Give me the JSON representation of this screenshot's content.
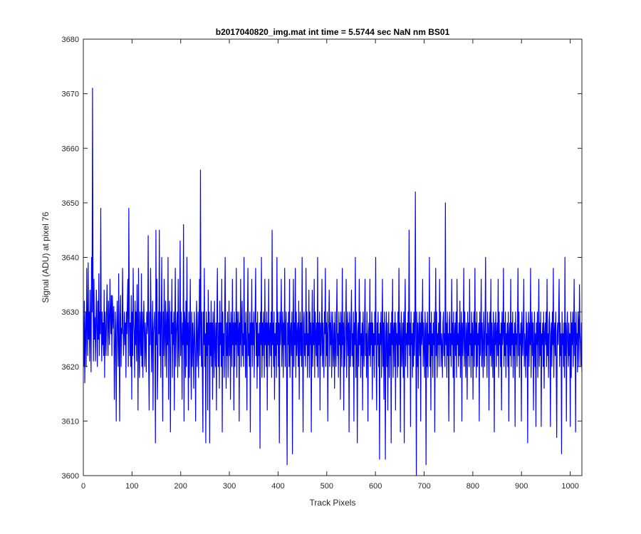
{
  "chart_data": {
    "type": "line",
    "title": "b2017040820_img.mat int time = 5.5744 sec  NaN nm BS01",
    "xlabel": "Track Pixels",
    "ylabel": "Signal (ADU) at pixel 76",
    "xlim": [
      0,
      1024
    ],
    "ylim": [
      3600,
      3680
    ],
    "xticks": [
      0,
      100,
      200,
      300,
      400,
      500,
      600,
      700,
      800,
      900,
      1000
    ],
    "yticks": [
      3600,
      3610,
      3620,
      3630,
      3640,
      3650,
      3660,
      3670,
      3680
    ],
    "grid": false,
    "legend": "none",
    "box": true,
    "line_color": "#0000ff",
    "series": [
      {
        "values": [
          3626,
          3620,
          3632,
          3617,
          3626,
          3630,
          3620,
          3638,
          3628,
          3622,
          3639,
          3625,
          3630,
          3621,
          3634,
          3627,
          3619,
          3640,
          3630,
          3671,
          3633,
          3621,
          3636,
          3625,
          3629,
          3621,
          3628,
          3634,
          3626,
          3620,
          3632,
          3625,
          3637,
          3622,
          3630,
          3626,
          3649,
          3628,
          3621,
          3630,
          3624,
          3628,
          3622,
          3634,
          3618,
          3630,
          3626,
          3622,
          3630,
          3635,
          3627,
          3622,
          3632,
          3628,
          3624,
          3636,
          3630,
          3626,
          3633,
          3622,
          3633,
          3629,
          3627,
          3631,
          3614,
          3622,
          3630,
          3625,
          3610,
          3627,
          3632,
          3626,
          3620,
          3637,
          3625,
          3610,
          3629,
          3633,
          3620,
          3627,
          3626,
          3638,
          3628,
          3622,
          3626,
          3630,
          3624,
          3628,
          3618,
          3630,
          3626,
          3632,
          3636,
          3620,
          3649,
          3630,
          3622,
          3628,
          3620,
          3633,
          3614,
          3630,
          3622,
          3638,
          3628,
          3626,
          3618,
          3632,
          3624,
          3630,
          3621,
          3635,
          3628,
          3612,
          3638,
          3624,
          3618,
          3630,
          3626,
          3622,
          3637,
          3620,
          3630,
          3618,
          3627,
          3632,
          3626,
          3620,
          3628,
          3624,
          3619,
          3630,
          3626,
          3628,
          3644,
          3620,
          3612,
          3630,
          3624,
          3638,
          3628,
          3619,
          3626,
          3632,
          3612,
          3626,
          3628,
          3630,
          3622,
          3606,
          3645,
          3624,
          3636,
          3614,
          3620,
          3630,
          3626,
          3645,
          3622,
          3630,
          3618,
          3628,
          3640,
          3624,
          3610,
          3630,
          3622,
          3636,
          3626,
          3620,
          3632,
          3628,
          3618,
          3630,
          3624,
          3640,
          3614,
          3628,
          3632,
          3622,
          3608,
          3630,
          3626,
          3636,
          3618,
          3628,
          3624,
          3630,
          3612,
          3628,
          3638,
          3620,
          3626,
          3628,
          3630,
          3618,
          3636,
          3624,
          3620,
          3628,
          3643,
          3622,
          3630,
          3626,
          3614,
          3628,
          3624,
          3646,
          3610,
          3630,
          3628,
          3618,
          3632,
          3620,
          3640,
          3624,
          3628,
          3612,
          3630,
          3618,
          3626,
          3636,
          3622,
          3614,
          3630,
          3620,
          3628,
          3624,
          3616,
          3630,
          3626,
          3622,
          3610,
          3628,
          3632,
          3620,
          3624,
          3630,
          3618,
          3626,
          3636,
          3622,
          3656,
          3628,
          3620,
          3630,
          3618,
          3608,
          3630,
          3624,
          3638,
          3620,
          3626,
          3606,
          3630,
          3622,
          3628,
          3612,
          3634,
          3624,
          3630,
          3606,
          3628,
          3622,
          3632,
          3620,
          3628,
          3614,
          3630,
          3626,
          3618,
          3632,
          3624,
          3620,
          3628,
          3612,
          3630,
          3638,
          3624,
          3620,
          3628,
          3616,
          3632,
          3624,
          3628,
          3620,
          3636,
          3608,
          3630,
          3622,
          3626,
          3618,
          3630,
          3640,
          3624,
          3616,
          3628,
          3622,
          3630,
          3618,
          3624,
          3632,
          3622,
          3628,
          3614,
          3630,
          3626,
          3620,
          3636,
          3624,
          3628,
          3612,
          3630,
          3620,
          3628,
          3624,
          3638,
          3618,
          3630,
          3626,
          3622,
          3630,
          3610,
          3628,
          3624,
          3636,
          3620,
          3628,
          3632,
          3622,
          3626,
          3620,
          3640,
          3624,
          3628,
          3618,
          3630,
          3624,
          3612,
          3628,
          3638,
          3622,
          3626,
          3620,
          3630,
          3608,
          3628,
          3624,
          3636,
          3620,
          3628,
          3624,
          3630,
          3618,
          3626,
          3630,
          3638,
          3622,
          3628,
          3616,
          3630,
          3620,
          3626,
          3622,
          3628,
          3605,
          3630,
          3624,
          3640,
          3618,
          3628,
          3622,
          3630,
          3626,
          3618,
          3636,
          3624,
          3628,
          3620,
          3630,
          3612,
          3628,
          3624,
          3636,
          3620,
          3626,
          3628,
          3622,
          3630,
          3618,
          3645,
          3624,
          3628,
          3620,
          3630,
          3614,
          3626,
          3622,
          3628,
          3618,
          3640,
          3624,
          3630,
          3620,
          3628,
          3606,
          3630,
          3624,
          3628,
          3636,
          3620,
          3626,
          3630,
          3618,
          3628,
          3624,
          3638,
          3620,
          3626,
          3630,
          3618,
          3602,
          3628,
          3624,
          3630,
          3620,
          3636,
          3618,
          3626,
          3628,
          3622,
          3630,
          3604,
          3626,
          3636,
          3620,
          3628,
          3624,
          3638,
          3618,
          3630,
          3622,
          3626,
          3628,
          3620,
          3632,
          3614,
          3626,
          3630,
          3622,
          3628,
          3620,
          3640,
          3624,
          3608,
          3628,
          3630,
          3622,
          3626,
          3620,
          3638,
          3624,
          3630,
          3618,
          3626,
          3622,
          3634,
          3618,
          3630,
          3624,
          3628,
          3608,
          3626,
          3634,
          3620,
          3628,
          3624,
          3636,
          3618,
          3630,
          3626,
          3622,
          3628,
          3620,
          3640,
          3618,
          3628,
          3624,
          3630,
          3612,
          3628,
          3622,
          3626,
          3636,
          3620,
          3628,
          3624,
          3618,
          3630,
          3626,
          3638,
          3620,
          3628,
          3622,
          3630,
          3610,
          3626,
          3628,
          3634,
          3620,
          3628,
          3624,
          3630,
          3618,
          3626,
          3630,
          3620,
          3624,
          3628,
          3616,
          3630,
          3624,
          3620,
          3628,
          3636,
          3622,
          3626,
          3618,
          3630,
          3624,
          3628,
          3614,
          3630,
          3626,
          3620,
          3638,
          3624,
          3628,
          3612,
          3630,
          3620,
          3624,
          3628,
          3636,
          3618,
          3626,
          3630,
          3622,
          3628,
          3608,
          3630,
          3626,
          3620,
          3628,
          3634,
          3622,
          3626,
          3620,
          3630,
          3610,
          3628,
          3624,
          3640,
          3618,
          3630,
          3624,
          3606,
          3626,
          3628,
          3620,
          3636,
          3624,
          3630,
          3618,
          3626,
          3622,
          3628,
          3612,
          3630,
          3624,
          3620,
          3628,
          3636,
          3622,
          3626,
          3618,
          3630,
          3624,
          3610,
          3626,
          3628,
          3622,
          3636,
          3620,
          3628,
          3624,
          3630,
          3614,
          3628,
          3622,
          3626,
          3618,
          3630,
          3624,
          3640,
          3620,
          3612,
          3628,
          3624,
          3630,
          3620,
          3626,
          3603,
          3628,
          3624,
          3630,
          3618,
          3626,
          3636,
          3620,
          3628,
          3614,
          3630,
          3624,
          3603,
          3626,
          3630,
          3620,
          3628,
          3612,
          3624,
          3630,
          3618,
          3626,
          3622,
          3628,
          3606,
          3630,
          3624,
          3636,
          3618,
          3626,
          3628,
          3620,
          3630,
          3612,
          3628,
          3624,
          3626,
          3618,
          3630,
          3620,
          3638,
          3624,
          3628,
          3608,
          3626,
          3630,
          3620,
          3624,
          3628,
          3618,
          3630,
          3606,
          3628,
          3636,
          3620,
          3626,
          3624,
          3628,
          3618,
          3630,
          3624,
          3645,
          3622,
          3628,
          3609,
          3630,
          3624,
          3626,
          3618,
          3628,
          3620,
          3630,
          3622,
          3626,
          3652,
          3624,
          3600,
          3630,
          3620,
          3628,
          3616,
          3626,
          3630,
          3622,
          3628,
          3610,
          3630,
          3624,
          3626,
          3636,
          3620,
          3628,
          3624,
          3618,
          3630,
          3626,
          3602,
          3628,
          3620,
          3630,
          3618,
          3626,
          3624,
          3640,
          3620,
          3628,
          3612,
          3630,
          3622,
          3626,
          3618,
          3628,
          3624,
          3630,
          3608,
          3626,
          3638,
          3622,
          3630,
          3618,
          3626,
          3624,
          3628,
          3620,
          3636,
          3624,
          3630,
          3620,
          3626,
          3624,
          3618,
          3628,
          3630,
          3622,
          3626,
          3620,
          3650,
          3624,
          3628,
          3618,
          3630,
          3622,
          3626,
          3610,
          3628,
          3630,
          3622,
          3626,
          3620,
          3636,
          3624,
          3628,
          3618,
          3630,
          3608,
          3626,
          3628,
          3622,
          3630,
          3618,
          3636,
          3624,
          3626,
          3620,
          3628,
          3622,
          3632,
          3618,
          3626,
          3630,
          3610,
          3628,
          3622,
          3626,
          3638,
          3620,
          3630,
          3624,
          3618,
          3628,
          3626,
          3614,
          3630,
          3622,
          3628,
          3620,
          3636,
          3624,
          3626,
          3618,
          3630,
          3622,
          3628,
          3614,
          3626,
          3630,
          3620,
          3638,
          3624,
          3628,
          3618,
          3630,
          3620,
          3626,
          3624,
          3628,
          3610,
          3630,
          3622,
          3626,
          3636,
          3620,
          3628,
          3624,
          3618,
          3630,
          3626,
          3620,
          3628,
          3640,
          3622,
          3626,
          3618,
          3630,
          3624,
          3628,
          3612,
          3626,
          3630,
          3622,
          3636,
          3620,
          3628,
          3624,
          3618,
          3630,
          3626,
          3608,
          3628,
          3624,
          3630,
          3620,
          3626,
          3628,
          3622,
          3636,
          3618,
          3630,
          3624,
          3626,
          3620,
          3628,
          3612,
          3630,
          3624,
          3626,
          3638,
          3620,
          3628,
          3622,
          3630,
          3618,
          3626,
          3624,
          3628,
          3620,
          3630,
          3610,
          3626,
          3628,
          3622,
          3636,
          3620,
          3628,
          3624,
          3630,
          3618,
          3626,
          3622,
          3628,
          3609,
          3630,
          3624,
          3626,
          3620,
          3628,
          3638,
          3622,
          3630,
          3618,
          3626,
          3624,
          3628,
          3610,
          3630,
          3626,
          3622,
          3628,
          3636,
          3620,
          3626,
          3624,
          3618,
          3630,
          3622,
          3628,
          3606,
          3626,
          3630,
          3620,
          3628,
          3624,
          3638,
          3618,
          3626,
          3630,
          3622,
          3628,
          3612,
          3624,
          3630,
          3620,
          3626,
          3609,
          3628,
          3624,
          3630,
          3618,
          3626,
          3636,
          3620,
          3628,
          3622,
          3630,
          3609,
          3626,
          3624,
          3628,
          3620,
          3630,
          3616,
          3626,
          3628,
          3624,
          3630,
          3620,
          3636,
          3622,
          3626,
          3618,
          3628,
          3630,
          3624,
          3609,
          3626,
          3628,
          3620,
          3630,
          3624,
          3638,
          3618,
          3626,
          3628,
          3622,
          3630,
          3620,
          3607,
          3626,
          3628,
          3624,
          3630,
          3636,
          3620,
          3628,
          3622,
          3626,
          3604,
          3630,
          3624,
          3626,
          3620,
          3628,
          3618,
          3640,
          3622,
          3628,
          3610,
          3626,
          3630,
          3624,
          3620,
          3628,
          3622,
          3626,
          3609,
          3630,
          3618,
          3628,
          3624,
          3630,
          3620,
          3626,
          3636,
          3622,
          3628,
          3608,
          3630,
          3624,
          3626,
          3619,
          3630,
          3628,
          3620,
          3635,
          3626,
          3624,
          3620,
          3628,
          3619
        ]
      }
    ]
  }
}
